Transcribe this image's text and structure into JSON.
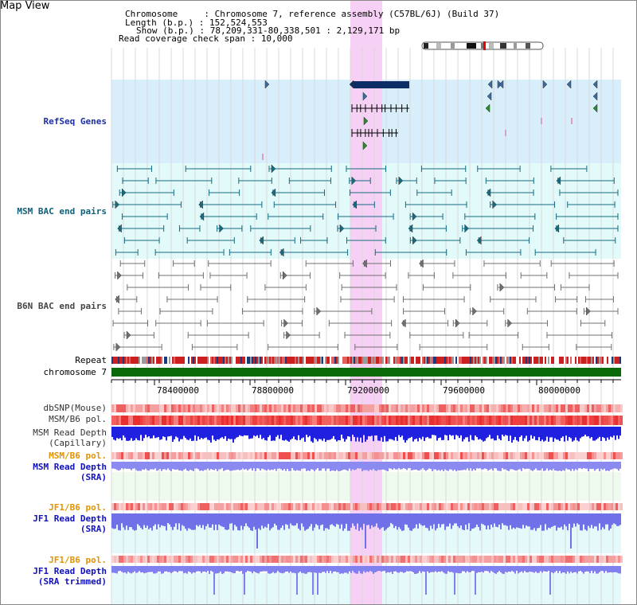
{
  "view_title": "Map View",
  "header": {
    "chromosome_label": "Chromosome     : ",
    "chromosome_value": "Chromosome 7, reference assembly (C57BL/6J) (Build 37)",
    "length_label": "Length (b.p.) : ",
    "length_value": "152,524,553",
    "show_label": "Show (b.p.) : ",
    "show_value": "78,209,331-80,338,501 : 2,129,171 bp",
    "coverage_label": "Read coverage check span : ",
    "coverage_value": "10,000"
  },
  "track_labels": {
    "refseq": "RefSeq Genes",
    "msm_bac": "MSM BAC end pairs",
    "b6n_bac": "B6N BAC end pairs",
    "repeat": "Repeat",
    "chromosome": "chromosome 7",
    "dbsnp": "dbSNP(Mouse)",
    "msm_b6_pol_1": "MSM/B6 pol.",
    "msm_depth_cap_1": "MSM Read Depth",
    "msm_depth_cap_2": "(Capillary)",
    "msm_b6_pol_2": "MSM/B6 pol.",
    "msm_depth_sra_1": "MSM Read Depth",
    "msm_depth_sra_2": "(SRA)",
    "jf1_b6_pol_1": "JF1/B6 pol.",
    "jf1_depth_sra_1": "JF1 Read Depth",
    "jf1_depth_sra_2": "(SRA)",
    "jf1_b6_pol_2": "JF1/B6 pol.",
    "jf1_depth_trim_1": "JF1 Read Depth",
    "jf1_depth_trim_2": "(SRA trimmed)"
  },
  "axis": {
    "ticks": [
      "78400000",
      "78800000",
      "79200000",
      "79600000",
      "80000000"
    ]
  },
  "colors": {
    "refseq_bg": "#d8eefa",
    "bac_bg": "#e2fafa",
    "highlight": "#f7d0f5",
    "chromosome": "#0a6a0a",
    "msm_bac": "#156b80",
    "b6n_bac": "#707070",
    "gene": "#0d2d66"
  }
}
